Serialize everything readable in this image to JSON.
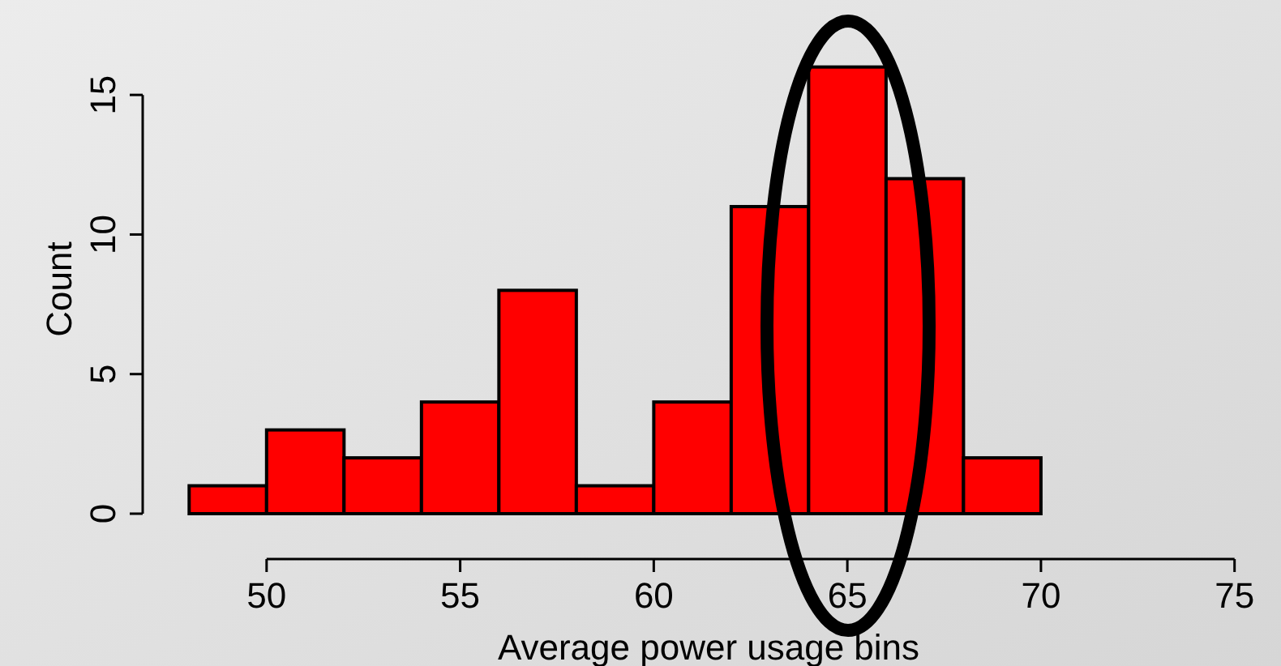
{
  "chart_data": {
    "type": "histogram",
    "xlabel": "Average power usage bins",
    "ylabel": "Count",
    "bins": [
      48,
      50,
      52,
      54,
      56,
      58,
      60,
      62,
      64,
      66,
      68,
      70
    ],
    "values": [
      1,
      3,
      2,
      4,
      8,
      1,
      4,
      11,
      16,
      12,
      2
    ],
    "color": "#ff0000",
    "xlim": [
      46.8,
      76.2
    ],
    "xticks": [
      50,
      55,
      60,
      65,
      70,
      75
    ],
    "ylim": [
      0,
      18.4
    ],
    "yticks": [
      0,
      5,
      10,
      15
    ],
    "grid": false
  }
}
